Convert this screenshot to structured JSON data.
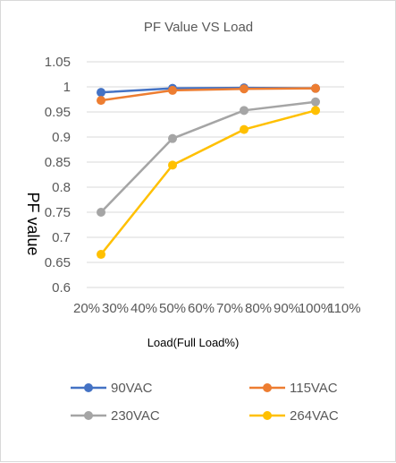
{
  "chart_data": {
    "type": "line",
    "title": "PF Value VS Load",
    "xlabel": "Load(Full Load%)",
    "ylabel": "PF value",
    "xlim": [
      20,
      110
    ],
    "ylim": [
      0.6,
      1.05
    ],
    "x_ticks": [
      "20%",
      "30%",
      "40%",
      "50%",
      "60%",
      "70%",
      "80%",
      "90%",
      "100%",
      "110%"
    ],
    "y_ticks": [
      "0.6",
      "0.65",
      "0.7",
      "0.75",
      "0.8",
      "0.85",
      "0.9",
      "0.95",
      "1",
      "1.05"
    ],
    "grid": "horizontal",
    "legend_position": "bottom",
    "x": [
      25,
      50,
      75,
      100
    ],
    "series": [
      {
        "name": "90VAC",
        "color": "#4472C4",
        "values": [
          0.989,
          0.997,
          0.998,
          0.997
        ]
      },
      {
        "name": "115VAC",
        "color": "#ED7D31",
        "values": [
          0.973,
          0.993,
          0.996,
          0.997
        ]
      },
      {
        "name": "230VAC",
        "color": "#A5A5A5",
        "values": [
          0.75,
          0.897,
          0.953,
          0.97
        ]
      },
      {
        "name": "264VAC",
        "color": "#FFC000",
        "values": [
          0.666,
          0.844,
          0.915,
          0.953
        ]
      }
    ]
  }
}
